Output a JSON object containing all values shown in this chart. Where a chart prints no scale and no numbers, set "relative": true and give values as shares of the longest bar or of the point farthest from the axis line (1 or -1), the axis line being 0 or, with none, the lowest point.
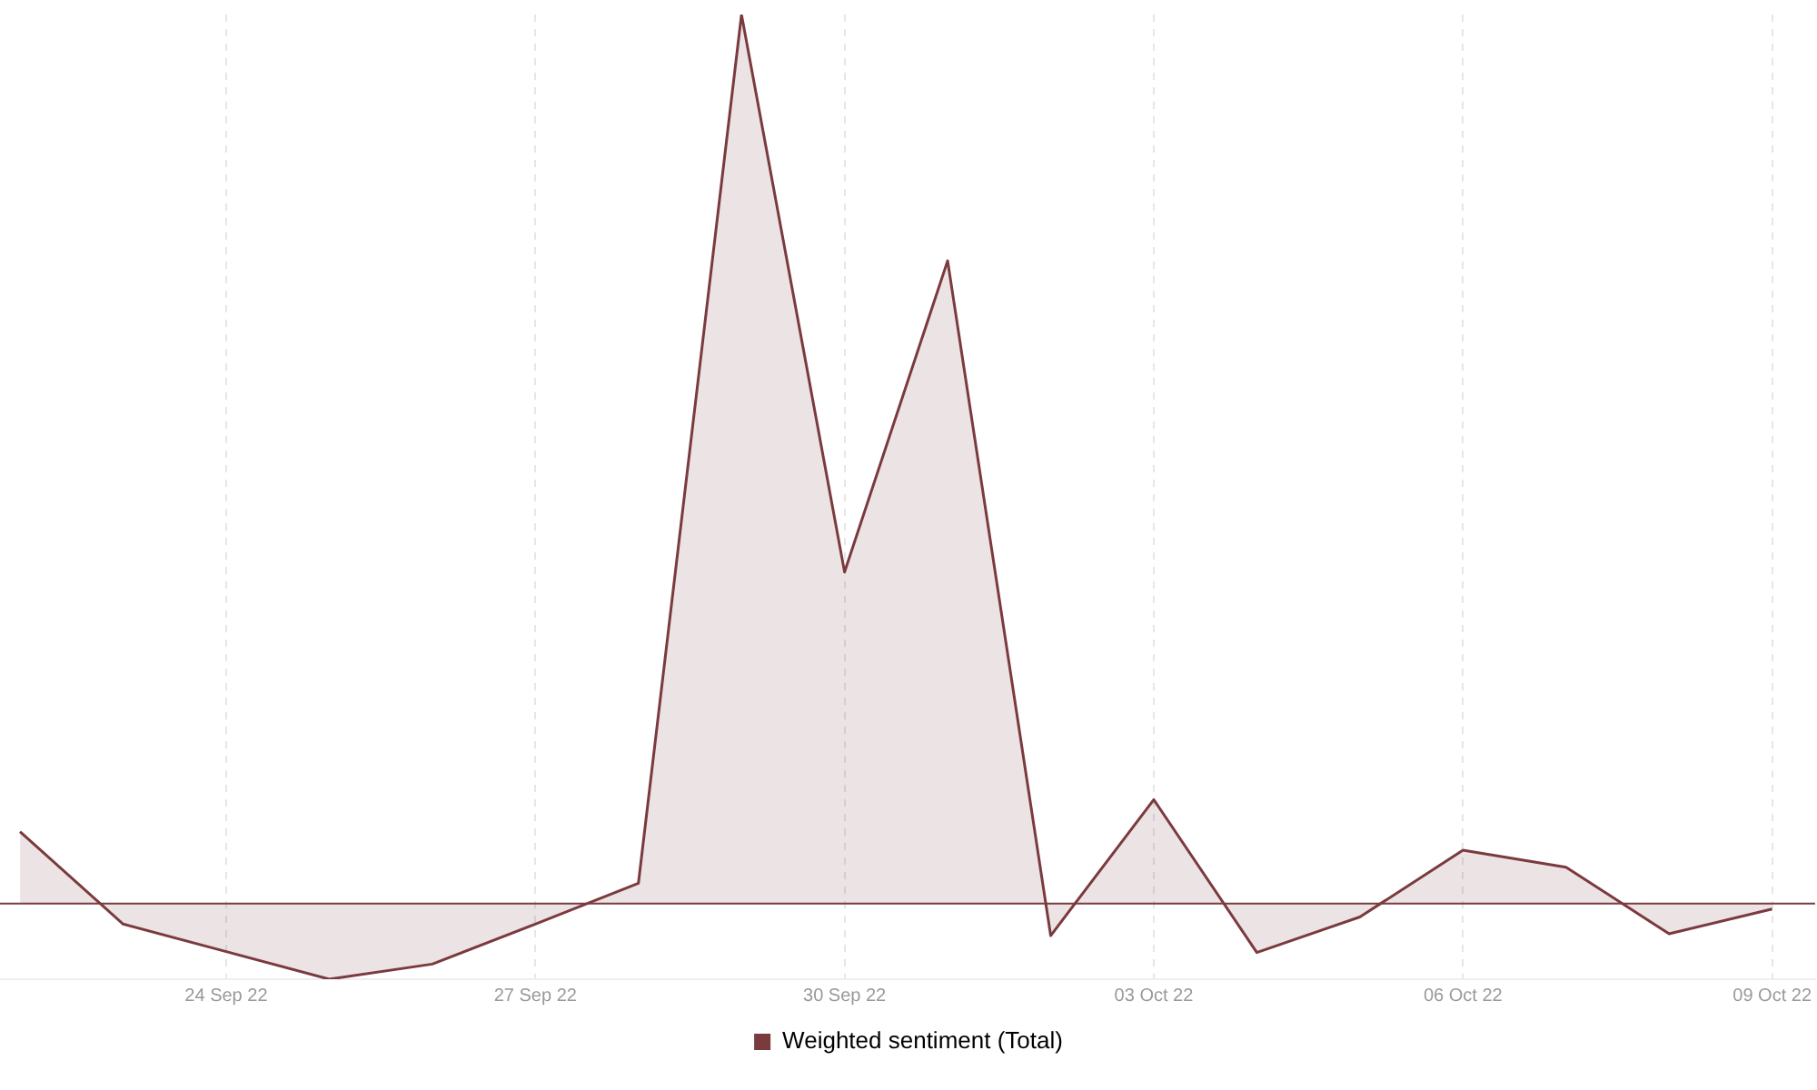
{
  "chart_data": {
    "type": "area",
    "relative": true,
    "x": [
      "--09-22",
      "--09-23",
      "--09-24",
      "--09-25",
      "--09-26",
      "--09-27",
      "--09-28",
      "--09-29",
      "--09-30",
      "--10-01",
      "--10-02",
      "--10-03",
      "--10-04",
      "--10-05",
      "--10-06",
      "--10-07",
      "--10-08",
      "--10-09"
    ],
    "xlim": [
      "--09-21T19:20",
      "--10-09T10:00"
    ],
    "xticks": [
      {
        "value": "--09-24",
        "label": "24 Sep 22"
      },
      {
        "value": "--09-27",
        "label": "27 Sep 22"
      },
      {
        "value": "--09-30",
        "label": "30 Sep 22"
      },
      {
        "value": "--10-03",
        "label": "03 Oct 22"
      },
      {
        "value": "--10-06",
        "label": "06 Oct 22"
      },
      {
        "value": "--10-09",
        "label": "09 Oct 22"
      }
    ],
    "series": [
      {
        "name": "Weighted sentiment (Total)",
        "color": "#7a3a3e",
        "values": [
          0.081,
          -0.023,
          -0.054,
          -0.085,
          -0.068,
          -0.023,
          0.023,
          1,
          0.373,
          0.723,
          -0.036,
          0.117,
          -0.055,
          -0.015,
          0.06,
          0.041,
          -0.034,
          -0.006
        ]
      }
    ],
    "ref_lines": [
      {
        "axis": "y",
        "value": 0,
        "color": "#7a3a3e"
      }
    ],
    "grid": "x",
    "legend": "bottom"
  }
}
